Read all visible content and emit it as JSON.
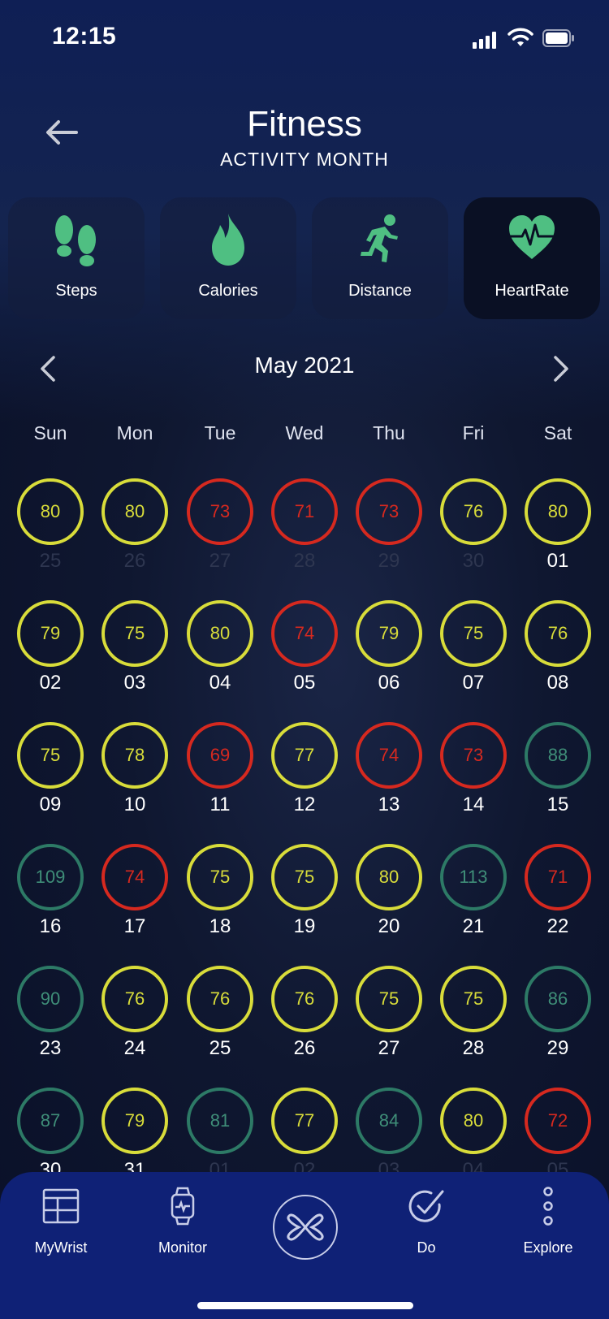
{
  "status_bar": {
    "time": "12:15"
  },
  "header": {
    "title": "Fitness",
    "subtitle": "ACTIVITY MONTH"
  },
  "tiles": [
    {
      "label": "Steps",
      "icon": "footprints-icon",
      "active": false
    },
    {
      "label": "Calories",
      "icon": "flame-icon",
      "active": false
    },
    {
      "label": "Distance",
      "icon": "runner-icon",
      "active": false
    },
    {
      "label": "HeartRate",
      "icon": "heart-pulse-icon",
      "active": true
    }
  ],
  "calendar": {
    "month_label": "May 2021",
    "weekdays": [
      "Sun",
      "Mon",
      "Tue",
      "Wed",
      "Thu",
      "Fri",
      "Sat"
    ],
    "days": [
      {
        "date": "25",
        "value": "80",
        "status": "yellow",
        "in_month": false
      },
      {
        "date": "26",
        "value": "80",
        "status": "yellow",
        "in_month": false
      },
      {
        "date": "27",
        "value": "73",
        "status": "red",
        "in_month": false
      },
      {
        "date": "28",
        "value": "71",
        "status": "red",
        "in_month": false
      },
      {
        "date": "29",
        "value": "73",
        "status": "red",
        "in_month": false
      },
      {
        "date": "30",
        "value": "76",
        "status": "yellow",
        "in_month": false
      },
      {
        "date": "01",
        "value": "80",
        "status": "yellow",
        "in_month": true
      },
      {
        "date": "02",
        "value": "79",
        "status": "yellow",
        "in_month": true
      },
      {
        "date": "03",
        "value": "75",
        "status": "yellow",
        "in_month": true
      },
      {
        "date": "04",
        "value": "80",
        "status": "yellow",
        "in_month": true
      },
      {
        "date": "05",
        "value": "74",
        "status": "red",
        "in_month": true
      },
      {
        "date": "06",
        "value": "79",
        "status": "yellow",
        "in_month": true
      },
      {
        "date": "07",
        "value": "75",
        "status": "yellow",
        "in_month": true
      },
      {
        "date": "08",
        "value": "76",
        "status": "yellow",
        "in_month": true
      },
      {
        "date": "09",
        "value": "75",
        "status": "yellow",
        "in_month": true
      },
      {
        "date": "10",
        "value": "78",
        "status": "yellow",
        "in_month": true
      },
      {
        "date": "11",
        "value": "69",
        "status": "red",
        "in_month": true
      },
      {
        "date": "12",
        "value": "77",
        "status": "yellow",
        "in_month": true
      },
      {
        "date": "13",
        "value": "74",
        "status": "red",
        "in_month": true
      },
      {
        "date": "14",
        "value": "73",
        "status": "red",
        "in_month": true
      },
      {
        "date": "15",
        "value": "88",
        "status": "green",
        "in_month": true
      },
      {
        "date": "16",
        "value": "109",
        "status": "green",
        "in_month": true
      },
      {
        "date": "17",
        "value": "74",
        "status": "red",
        "in_month": true
      },
      {
        "date": "18",
        "value": "75",
        "status": "yellow",
        "in_month": true
      },
      {
        "date": "19",
        "value": "75",
        "status": "yellow",
        "in_month": true
      },
      {
        "date": "20",
        "value": "80",
        "status": "yellow",
        "in_month": true
      },
      {
        "date": "21",
        "value": "113",
        "status": "green",
        "in_month": true
      },
      {
        "date": "22",
        "value": "71",
        "status": "red",
        "in_month": true
      },
      {
        "date": "23",
        "value": "90",
        "status": "green",
        "in_month": true
      },
      {
        "date": "24",
        "value": "76",
        "status": "yellow",
        "in_month": true
      },
      {
        "date": "25",
        "value": "76",
        "status": "yellow",
        "in_month": true
      },
      {
        "date": "26",
        "value": "76",
        "status": "yellow",
        "in_month": true
      },
      {
        "date": "27",
        "value": "75",
        "status": "yellow",
        "in_month": true
      },
      {
        "date": "28",
        "value": "75",
        "status": "yellow",
        "in_month": true
      },
      {
        "date": "29",
        "value": "86",
        "status": "green",
        "in_month": true
      },
      {
        "date": "30",
        "value": "87",
        "status": "green",
        "in_month": true
      },
      {
        "date": "31",
        "value": "79",
        "status": "yellow",
        "in_month": true
      },
      {
        "date": "01",
        "value": "81",
        "status": "green",
        "in_month": false
      },
      {
        "date": "02",
        "value": "77",
        "status": "yellow",
        "in_month": false
      },
      {
        "date": "03",
        "value": "84",
        "status": "green",
        "in_month": false
      },
      {
        "date": "04",
        "value": "80",
        "status": "yellow",
        "in_month": false
      },
      {
        "date": "05",
        "value": "72",
        "status": "red",
        "in_month": false
      }
    ]
  },
  "bottom_nav": {
    "items": [
      {
        "label": "MyWrist",
        "icon": "dashboard-icon"
      },
      {
        "label": "Monitor",
        "icon": "watch-icon"
      },
      {
        "label": "",
        "icon": "app-logo-icon"
      },
      {
        "label": "Do",
        "icon": "check-circle-icon"
      },
      {
        "label": "Explore",
        "icon": "more-vertical-icon"
      }
    ]
  },
  "colors": {
    "accent_green": "#4fbf82",
    "ring_yellow": "#d8dc3a",
    "ring_red": "#d6291f",
    "ring_green": "#2d7a66",
    "nav_bg": "#0f2176"
  }
}
